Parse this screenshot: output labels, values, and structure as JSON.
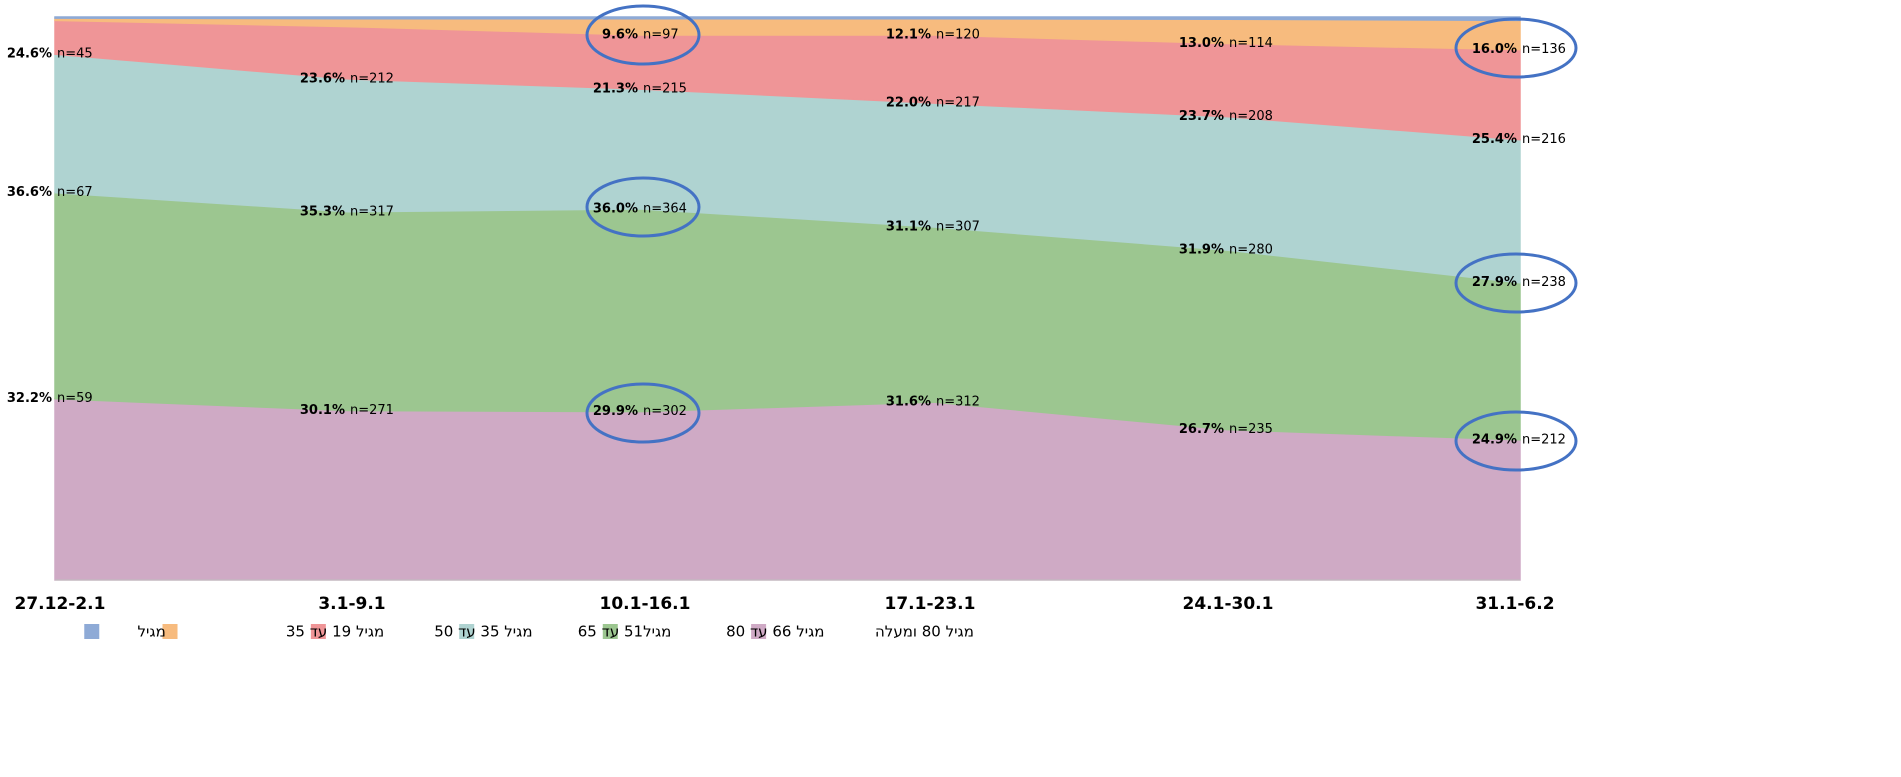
{
  "chart_data": {
    "type": "stacked_area_100",
    "categories": [
      "27.12-2.1",
      "3.1-9.1",
      "10.1-16.1",
      "17.1-23.1",
      "24.1-30.1",
      "31.1-6.2"
    ],
    "ylim": [
      0,
      100
    ],
    "series": [
      {
        "name": "מגיל 80 ומעלה",
        "color": "#cfaac5",
        "values": [
          32.2,
          30.1,
          29.9,
          31.6,
          26.7,
          24.9
        ],
        "value_labels": [
          "32.2%",
          "30.1%",
          "29.9%",
          "31.6%",
          "26.7%",
          "24.9%"
        ],
        "n_labels": [
          "n=59",
          "n=271",
          "n=302",
          "n=312",
          "n=235",
          "n=212"
        ]
      },
      {
        "name": "מגיל 66 עד 80",
        "color": "#9cc690",
        "values": [
          36.6,
          35.3,
          36.0,
          31.1,
          31.9,
          27.9
        ],
        "value_labels": [
          "36.6%",
          "35.3%",
          "36.0%",
          "31.1%",
          "31.9%",
          "27.9%"
        ],
        "n_labels": [
          "n=67",
          "n=317",
          "n=364",
          "n=307",
          "n=280",
          "n=238"
        ]
      },
      {
        "name": "מגיל51 עד 65",
        "color": "#afd3d1",
        "values": [
          24.6,
          23.6,
          21.3,
          22.0,
          23.7,
          25.4
        ],
        "value_labels": [
          "24.6%",
          "23.6%",
          "21.3%",
          "22.0%",
          "23.7%",
          "25.4%"
        ],
        "n_labels": [
          "n=45",
          "n=212",
          "n=215",
          "n=217",
          "n=208",
          "n=216"
        ]
      },
      {
        "name": "מגיל 35 עד 50",
        "color": "#ef9597",
        "values": [
          6.0,
          9.3,
          9.6,
          12.1,
          13.0,
          16.0
        ],
        "value_labels": [
          null,
          null,
          "9.6%",
          "12.1%",
          "13.0%",
          "16.0%"
        ],
        "n_labels": [
          null,
          null,
          "n=97",
          "n=120",
          "n=114",
          "n=136"
        ]
      },
      {
        "name": "מגיל 19 עד 35",
        "color": "#f7bb7e",
        "values": [
          0.4,
          1.4,
          2.9,
          2.9,
          4.3,
          5.2
        ]
      },
      {
        "name": "מגיל",
        "color": "#8eaad6",
        "values": [
          0.2,
          0.3,
          0.3,
          0.3,
          0.4,
          0.6
        ]
      }
    ]
  }
}
